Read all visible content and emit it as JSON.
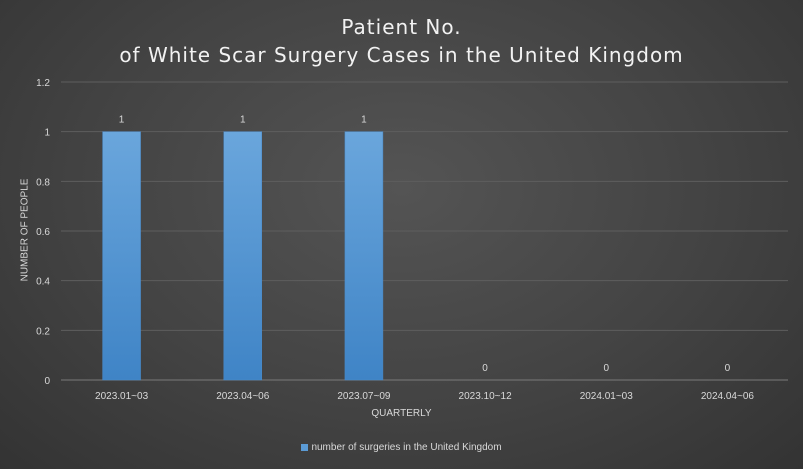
{
  "chart_data": {
    "type": "bar",
    "title_line1": "Patient No.",
    "title_line2": "of White Scar Surgery Cases in the United Kingdom",
    "xlabel": "QUARTERLY",
    "ylabel": "NUMBER OF PEOPLE",
    "categories": [
      "2023.01~03",
      "2023.04~06",
      "2023.07~09",
      "2023.10~12",
      "2024.01~03",
      "2024.04~06"
    ],
    "series": [
      {
        "name": "number of surgeries in the United Kingdom",
        "values": [
          1,
          1,
          1,
          0,
          0,
          0
        ],
        "color": "#5b9bd5"
      }
    ],
    "yticks": [
      "0",
      "0.2",
      "0.4",
      "0.6",
      "0.8",
      "1",
      "1.2"
    ],
    "ylim": [
      0,
      1.2
    ],
    "grid": true,
    "data_labels": true,
    "legend_position": "bottom"
  }
}
